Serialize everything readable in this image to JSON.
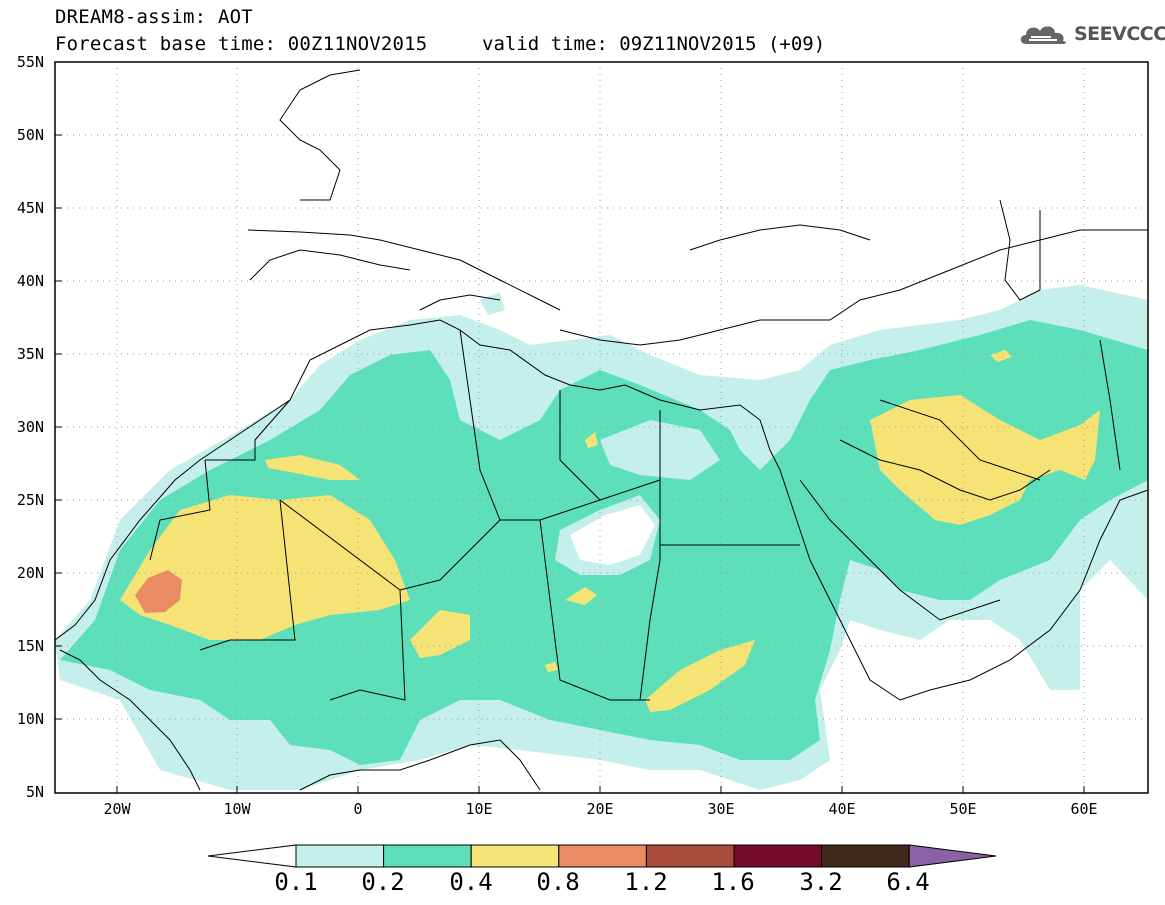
{
  "header": {
    "title": "DREAM8-assim: AOT",
    "base_time": "Forecast base time: 00Z11NOV2015",
    "valid_time": "valid time: 09Z11NOV2015 (+09)",
    "logo_text": "SEEVCCC"
  },
  "map": {
    "lat_labels": [
      "55N",
      "50N",
      "45N",
      "40N",
      "35N",
      "30N",
      "25N",
      "20N",
      "15N",
      "10N",
      "5N"
    ],
    "lon_labels": [
      "20W",
      "10W",
      "0",
      "10E",
      "20E",
      "30E",
      "40E",
      "50E",
      "60E"
    ],
    "grid": "dotted"
  },
  "colorbar": {
    "labels": [
      "0.1",
      "0.2",
      "0.4",
      "0.8",
      "1.2",
      "1.6",
      "3.2",
      "6.4"
    ],
    "colors": [
      "#ffffff",
      "#c5efea",
      "#5de0ba",
      "#f5e375",
      "#e98c66",
      "#aa4d3d",
      "#760b29",
      "#3f2a1a",
      "#8a63a7"
    ]
  }
}
